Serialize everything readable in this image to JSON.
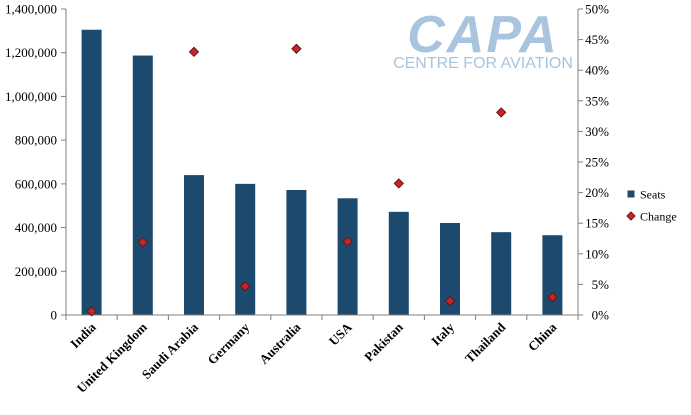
{
  "chart_data": {
    "type": "bar",
    "categories": [
      "India",
      "United Kingdom",
      "Saudi Arabia",
      "Germany",
      "Australia",
      "USA",
      "Pakistan",
      "Italy",
      "Thailand",
      "China"
    ],
    "series": [
      {
        "name": "Seats",
        "kind": "bar",
        "axis": "left",
        "values": [
          1305000,
          1187000,
          640000,
          600000,
          572000,
          534000,
          472000,
          421000,
          379000,
          365000
        ]
      },
      {
        "name": "Change",
        "kind": "scatter",
        "axis": "right",
        "values": [
          0.006,
          0.119,
          0.43,
          0.047,
          0.435,
          0.12,
          0.215,
          0.023,
          0.331,
          0.029
        ]
      }
    ],
    "y_left": {
      "lim": [
        0,
        1400000
      ],
      "ticks": [
        0,
        200000,
        400000,
        600000,
        800000,
        1000000,
        1200000,
        1400000
      ],
      "tick_labels": [
        "0",
        "200,000",
        "400,000",
        "600,000",
        "800,000",
        "1,000,000",
        "1,200,000",
        "1,400,000"
      ]
    },
    "y_right": {
      "lim": [
        0,
        0.5
      ],
      "ticks": [
        0,
        0.05,
        0.1,
        0.15,
        0.2,
        0.25,
        0.3,
        0.35,
        0.4,
        0.45,
        0.5
      ],
      "tick_labels": [
        "0%",
        "5%",
        "10%",
        "15%",
        "20%",
        "25%",
        "30%",
        "35%",
        "40%",
        "45%",
        "50%"
      ]
    },
    "grid": false,
    "legend_position": "right",
    "colors": {
      "bar": "#1B4A6E",
      "marker": "#C0282B",
      "marker_edge": "#6E1214",
      "axis": "#7f7f7f"
    }
  },
  "watermark": {
    "text": "CAPA",
    "subtext": "CENTRE FOR AVIATION",
    "color": "#A9C4DE"
  }
}
